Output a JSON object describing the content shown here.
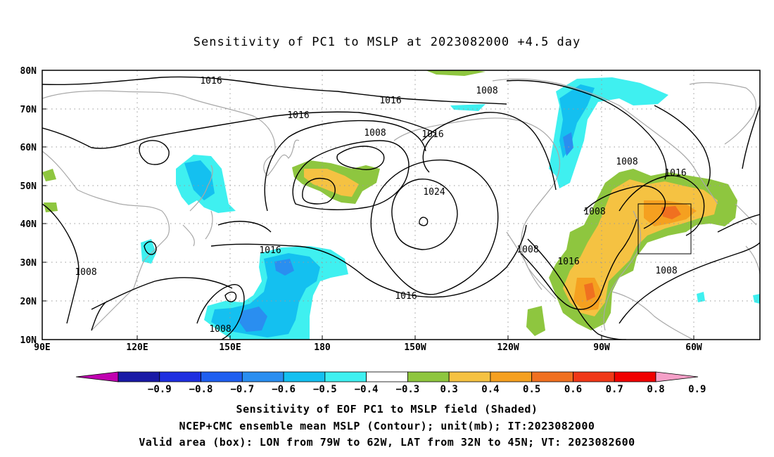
{
  "title": "Sensitivity of PC1 to MSLP at 2023082000 +4.5 day",
  "map": {
    "lat_labels": [
      "80N",
      "70N",
      "60N",
      "50N",
      "40N",
      "30N",
      "20N",
      "10N"
    ],
    "lon_labels": [
      "90E",
      "120E",
      "150E",
      "180",
      "150W",
      "120W",
      "90W",
      "60W"
    ],
    "grid": true,
    "valid_box": {
      "lon_from": "79W",
      "lon_to": "62W",
      "lat_from": "32N",
      "lat_to": "45N"
    }
  },
  "contour_labels": [
    {
      "text": "1016"
    },
    {
      "text": "1016"
    },
    {
      "text": "1016"
    },
    {
      "text": "1016"
    },
    {
      "text": "1008"
    },
    {
      "text": "1008"
    },
    {
      "text": "1024"
    },
    {
      "text": "1016"
    },
    {
      "text": "1008"
    },
    {
      "text": "1016"
    },
    {
      "text": "1008"
    },
    {
      "text": "1016"
    },
    {
      "text": "1008"
    },
    {
      "text": "1016"
    },
    {
      "text": "1008"
    },
    {
      "text": "1008"
    },
    {
      "text": "1008"
    }
  ],
  "colorbar": {
    "labels": [
      "-0.9",
      "-0.8",
      "-0.7",
      "-0.6",
      "-0.5",
      "-0.4",
      "-0.3",
      "0.3",
      "0.4",
      "0.5",
      "0.6",
      "0.7",
      "0.8",
      "0.9"
    ],
    "colors": [
      "#c000b0",
      "#1a1aa6",
      "#1f2fe0",
      "#1f5ff0",
      "#2a8ef0",
      "#14c0f0",
      "#3ff0f0",
      "#ffffff",
      "#8ec63f",
      "#f5c242",
      "#f5a020",
      "#f07020",
      "#f03818",
      "#f00000",
      "#f5a0c8"
    ]
  },
  "captions": {
    "line1": "Sensitivity of EOF PC1 to MSLP field (Shaded)",
    "line2": "NCEP+CMC ensemble mean MSLP (Contour); unit(mb); IT:2023082000",
    "line3": "Valid area (box): LON from 79W to 62W, LAT from 32N to 45N; VT: 2023082600"
  }
}
